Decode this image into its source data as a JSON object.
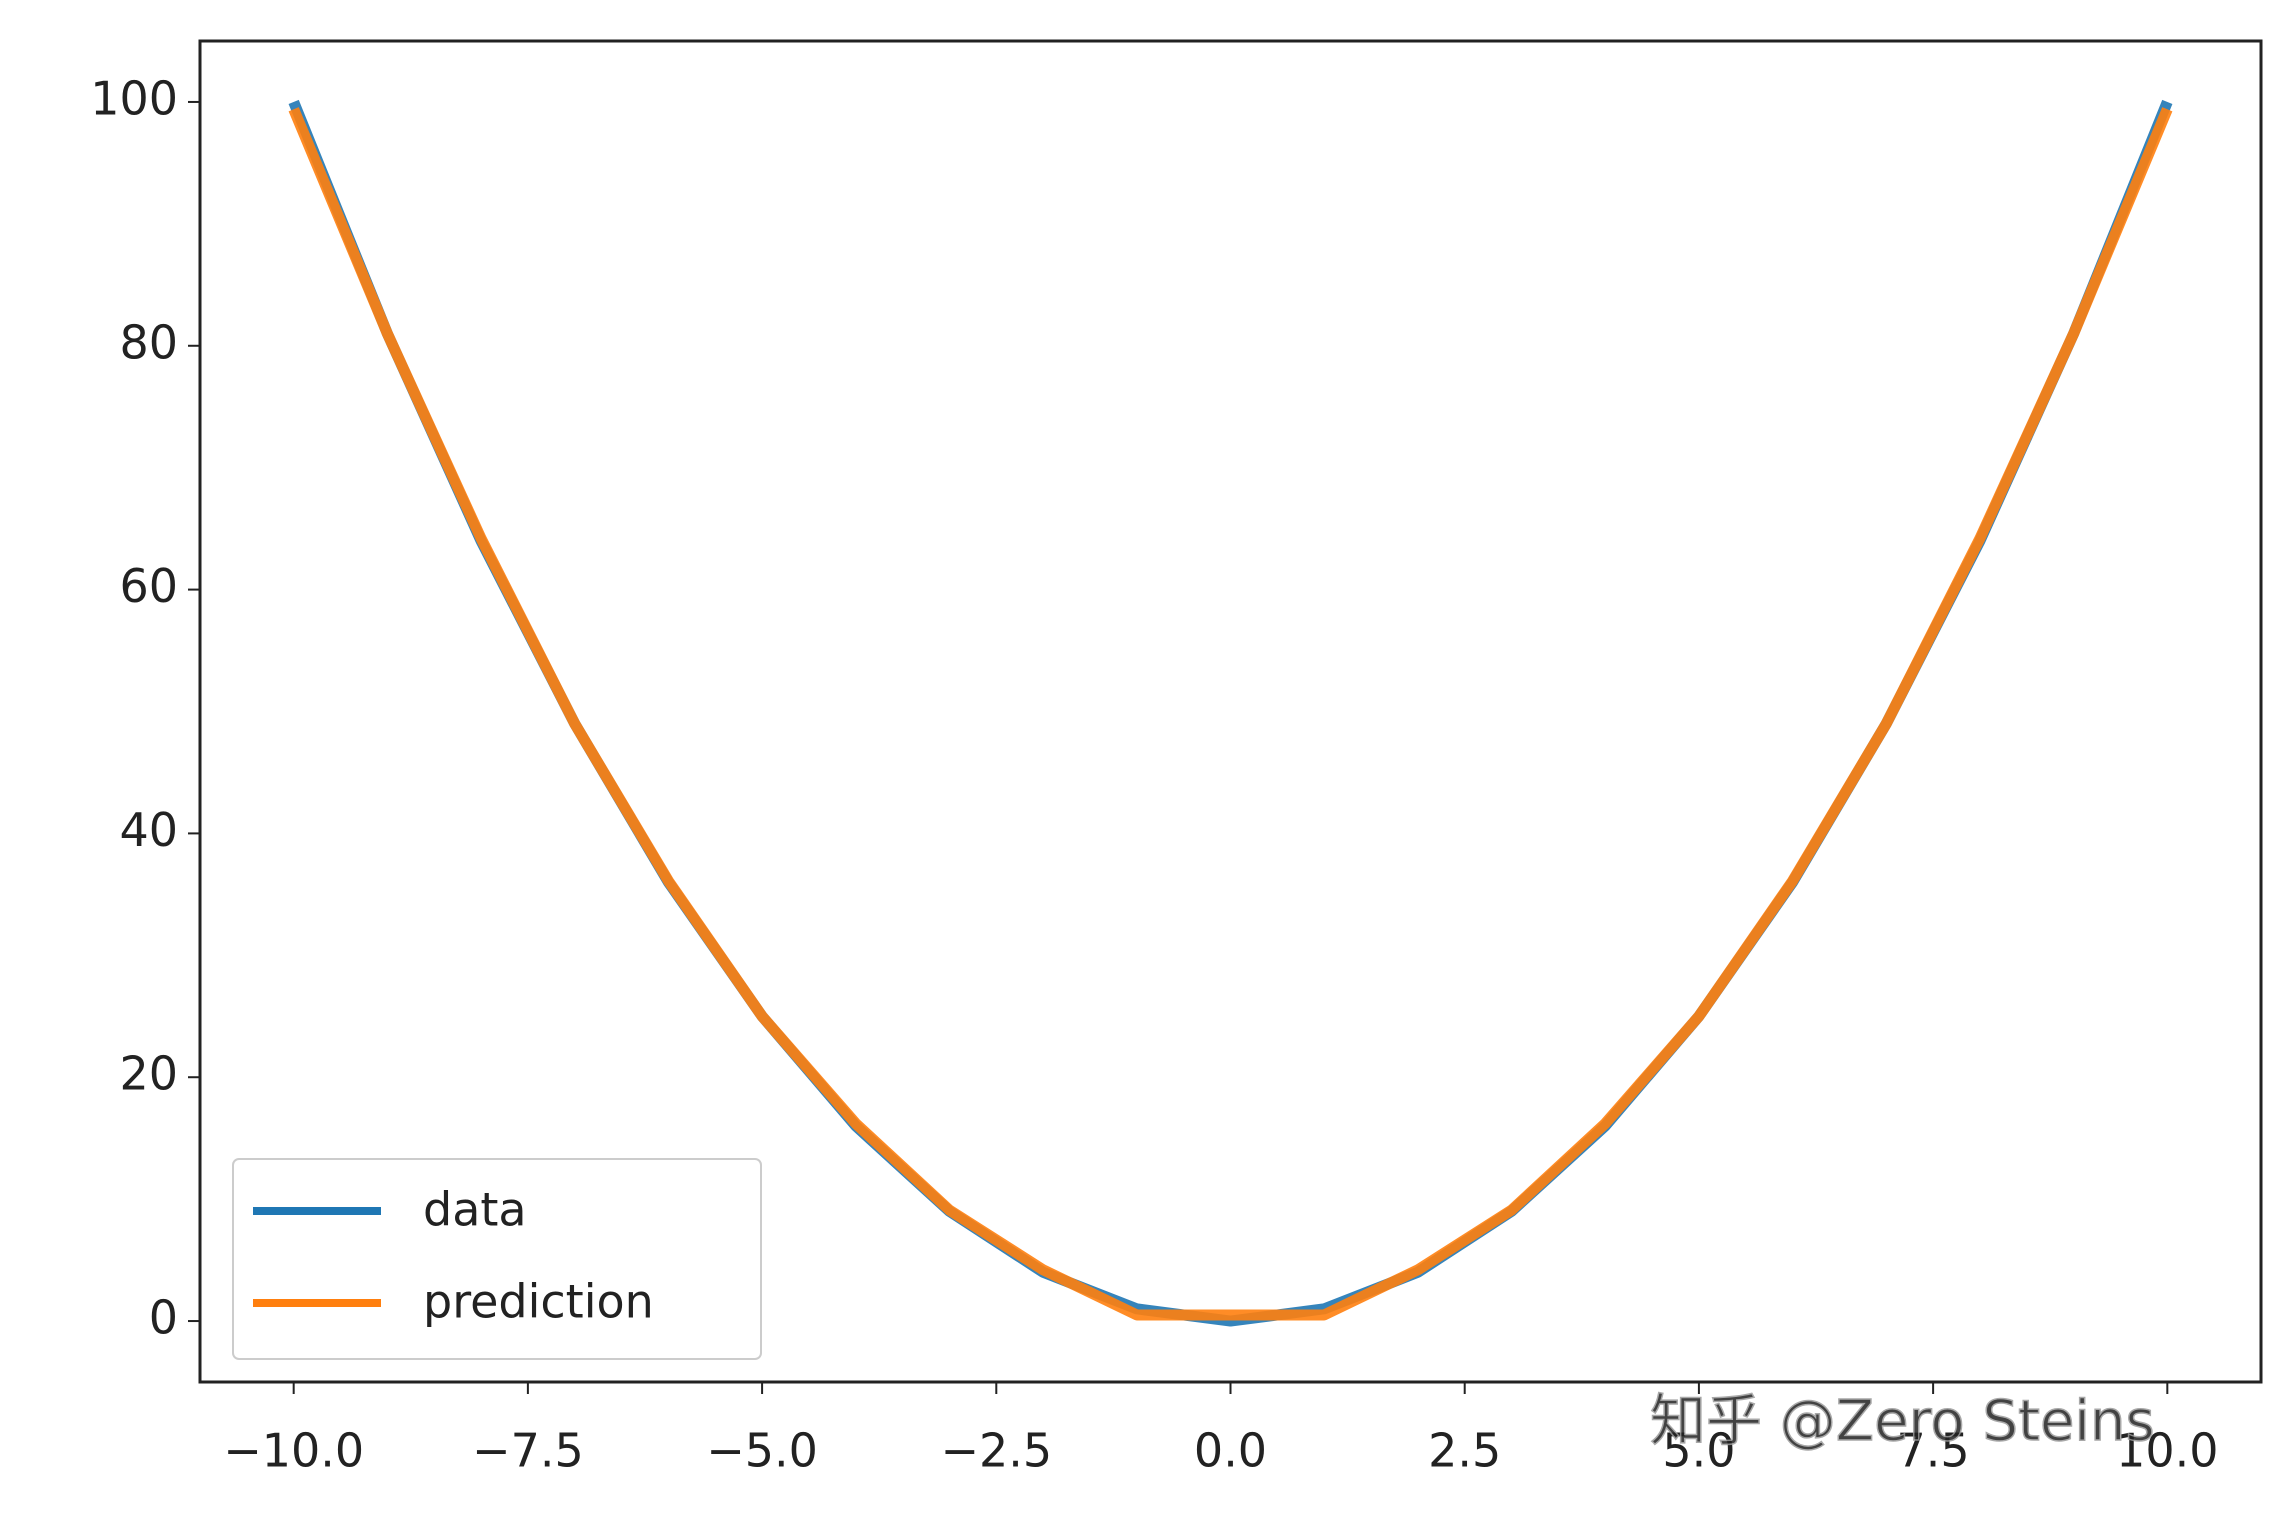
{
  "chart_data": {
    "type": "line",
    "x": [
      -10,
      -9,
      -8,
      -7,
      -6,
      -5,
      -4,
      -3,
      -2,
      -1,
      0,
      1,
      2,
      3,
      4,
      5,
      6,
      7,
      8,
      9,
      10
    ],
    "series": [
      {
        "name": "data",
        "color": "#1f77b4",
        "values": [
          100,
          81,
          64,
          49,
          36,
          25,
          16,
          9,
          4,
          1,
          0,
          1,
          4,
          9,
          16,
          25,
          36,
          49,
          64,
          81,
          100
        ]
      },
      {
        "name": "prediction",
        "color": "#ff7f0e",
        "values": [
          99.4,
          81,
          64.2,
          49,
          36.1,
          25,
          16.2,
          9.1,
          4.2,
          0.5,
          0.5,
          0.5,
          4.2,
          9.1,
          16.2,
          25,
          36.1,
          49,
          64.2,
          81,
          99.4
        ]
      }
    ],
    "xlim": [
      -11,
      11
    ],
    "ylim": [
      -5,
      105
    ],
    "xticks": [
      {
        "value": -10,
        "label": "−10.0"
      },
      {
        "value": -7.5,
        "label": "−7.5"
      },
      {
        "value": -5,
        "label": "−5.0"
      },
      {
        "value": -2.5,
        "label": "−2.5"
      },
      {
        "value": 0,
        "label": "0.0"
      },
      {
        "value": 2.5,
        "label": "2.5"
      },
      {
        "value": 5,
        "label": "5.0"
      },
      {
        "value": 7.5,
        "label": "7.5"
      },
      {
        "value": 10,
        "label": "10.0"
      }
    ],
    "yticks": [
      0,
      20,
      40,
      60,
      80,
      100
    ],
    "legend": "lower left",
    "grid": false,
    "annotation": "知乎 @Zero Steins"
  }
}
